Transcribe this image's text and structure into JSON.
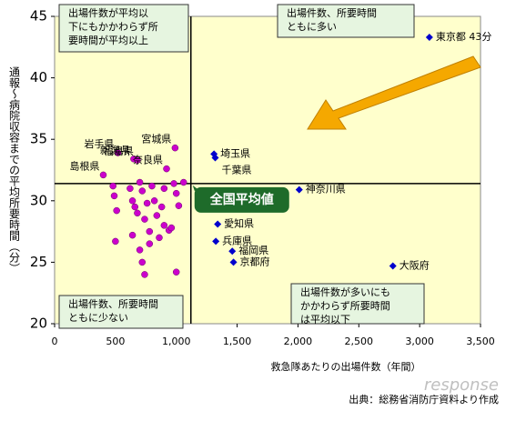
{
  "chart_data": {
    "type": "scatter",
    "x_label": "救急隊あたりの出場件数（年間）",
    "y_label": "通報～病院収容までの平均所要時間（分）",
    "xlim": [
      0,
      3500
    ],
    "ylim": [
      20,
      45
    ],
    "xticks": [
      0,
      500,
      {
        "value": 1000,
        "label": "1,000"
      },
      {
        "value": 1500,
        "label": "1,500"
      },
      {
        "value": 2000,
        "label": "2,000"
      },
      {
        "value": 2500,
        "label": "2,500"
      },
      {
        "value": 3000,
        "label": "3,000"
      },
      {
        "value": 3500,
        "label": "3,500"
      }
    ],
    "yticks": [
      20,
      25,
      30,
      35,
      40,
      45
    ],
    "average": {
      "x": 1120,
      "y": 31.4,
      "label": "全国平均値"
    },
    "series": [
      {
        "marker": "diamond",
        "color": "#0000cc",
        "points": [
          {
            "label": "東京都 43分",
            "x": 3080,
            "y": 43.3
          },
          {
            "label": "埼玉県",
            "x": 1310,
            "y": 33.8
          },
          {
            "label": "千葉県",
            "x": 1320,
            "y": 33.5
          },
          {
            "label": "神奈川県",
            "x": 2010,
            "y": 30.9
          },
          {
            "label": "愛知県",
            "x": 1340,
            "y": 28.1
          },
          {
            "label": "兵庫県",
            "x": 1325,
            "y": 26.7
          },
          {
            "label": "福岡県",
            "x": 1460,
            "y": 25.9
          },
          {
            "label": "京都府",
            "x": 1470,
            "y": 25.0
          },
          {
            "label": "大阪府",
            "x": 2780,
            "y": 24.7
          }
        ]
      },
      {
        "marker": "circle",
        "color": "#cc00cc",
        "points": [
          {
            "label": "宮城県",
            "x": 990,
            "y": 34.3
          },
          {
            "label": "岩手県",
            "x": 520,
            "y": 33.9
          },
          {
            "label": "新潟県",
            "x": 650,
            "y": 33.4
          },
          {
            "label": "福島県",
            "x": 680,
            "y": 33.3
          },
          {
            "label": "奈良県",
            "x": 920,
            "y": 32.6
          },
          {
            "label": "島根県",
            "x": 400,
            "y": 32.1
          }
        ]
      },
      {
        "marker": "circle",
        "color": "#cc00cc",
        "x": [
          480,
          490,
          510,
          500,
          620,
          640,
          660,
          680,
          700,
          720,
          740,
          760,
          780,
          800,
          820,
          840,
          860,
          880,
          900,
          940,
          960,
          980,
          1000,
          1020,
          700,
          720,
          740,
          780,
          1000,
          900,
          640,
          1060
        ],
        "y": [
          31.2,
          30.4,
          29.2,
          26.7,
          31.0,
          30.0,
          29.5,
          29.0,
          31.5,
          30.8,
          28.5,
          29.8,
          27.5,
          31.2,
          30.0,
          28.8,
          27.0,
          29.5,
          31.0,
          27.6,
          27.8,
          31.4,
          30.6,
          29.6,
          26.0,
          25.0,
          24.0,
          26.5,
          24.2,
          28.0,
          27.2,
          31.5
        ]
      }
    ],
    "annotations": [
      [
        "出場件数が平均以",
        "下にもかかわらず所",
        "要時間が平均以上"
      ],
      [
        "出場件数、所要時間",
        "ともに多い"
      ],
      [
        "出場件数、所要時間",
        "ともに少ない"
      ],
      [
        "出場件数が多いにも",
        "かかわらず所要時間",
        "は平均以下"
      ]
    ],
    "source": "出典：総務省消防庁資料より作成",
    "watermark": "response"
  }
}
